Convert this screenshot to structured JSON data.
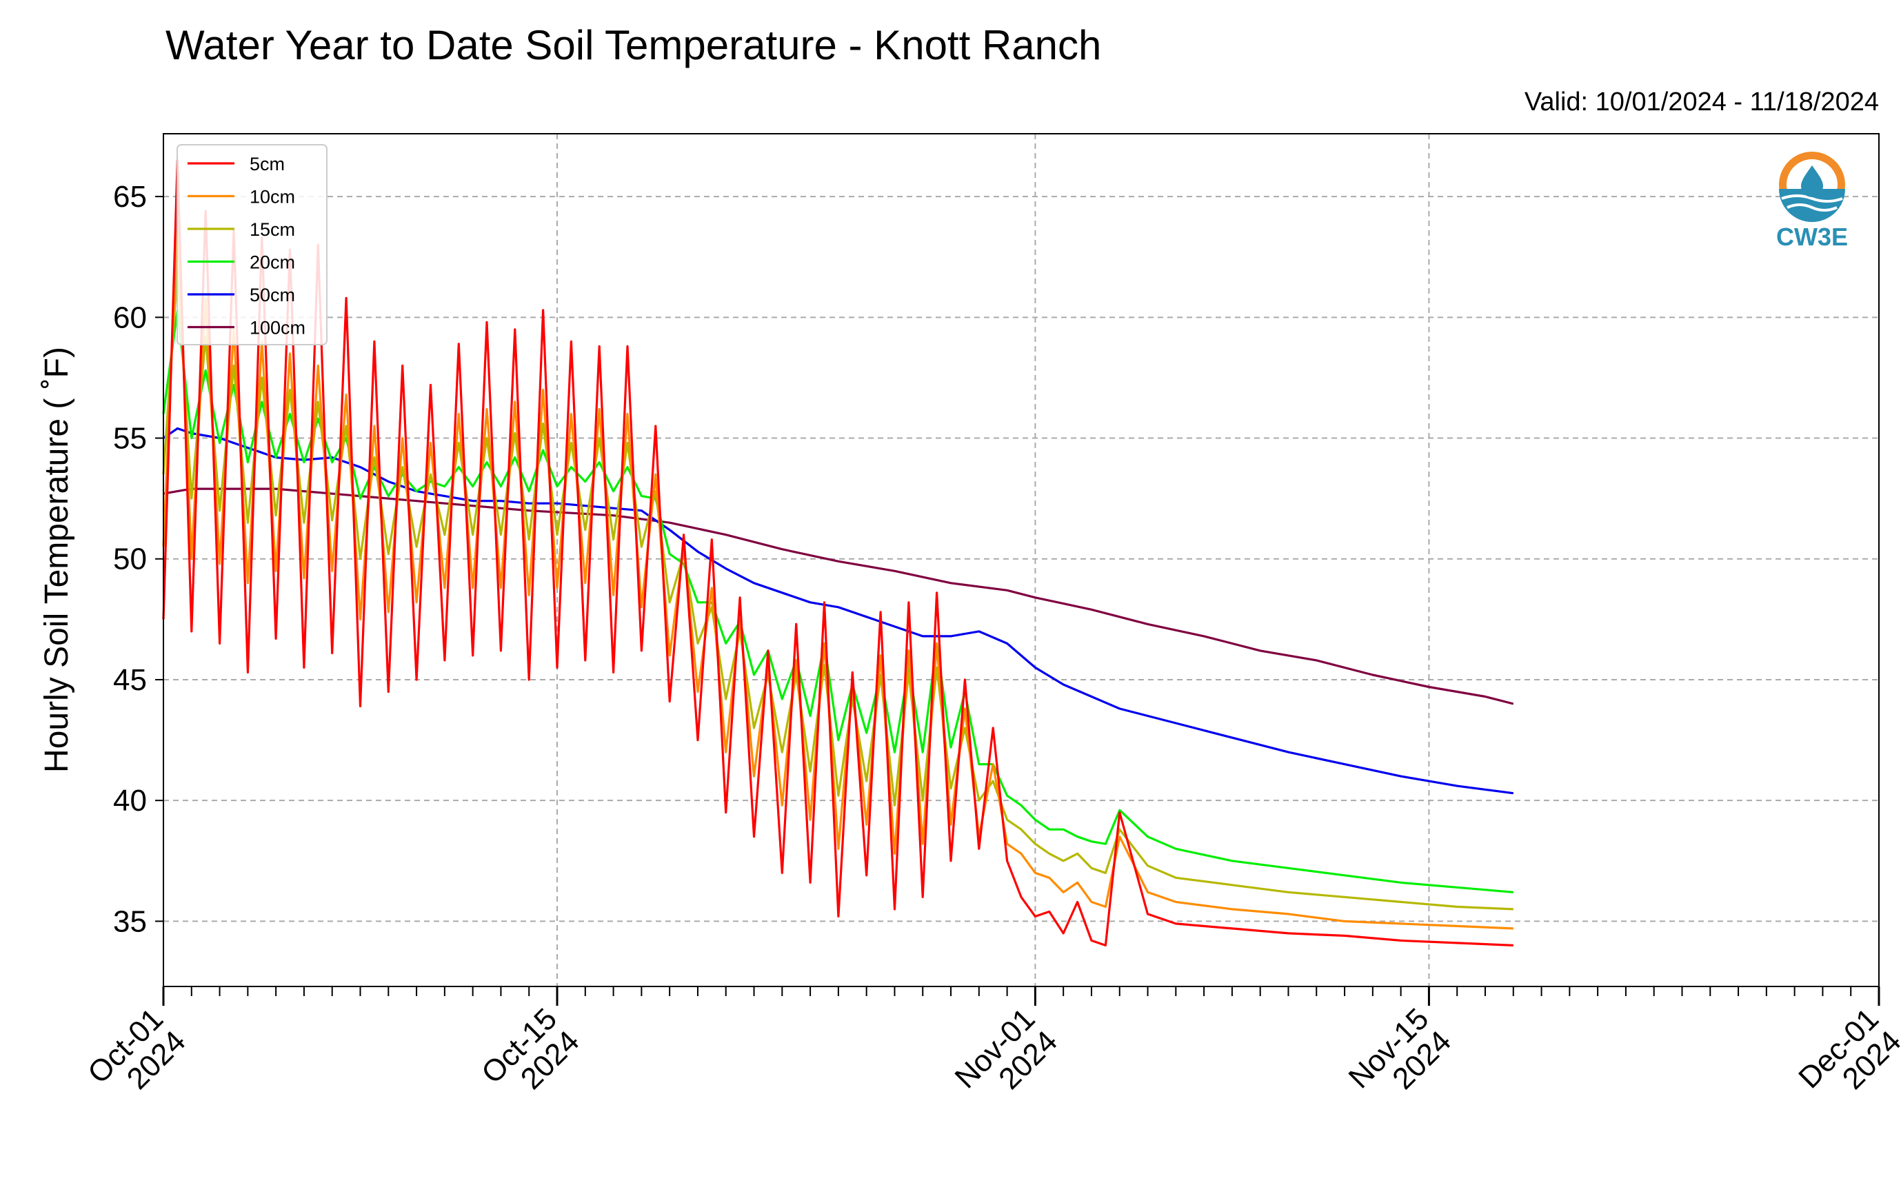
{
  "chart_data": {
    "type": "line",
    "title": "Water Year to Date Soil Temperature - Knott Ranch",
    "subtitle": "Valid: 10/01/2024 - 11/18/2024",
    "ylabel": "Hourly Soil Temperature ( ˚F)",
    "xlabel": "",
    "xlim": [
      "2024-10-01",
      "2024-12-01"
    ],
    "ylim": [
      32.3,
      67.6
    ],
    "yticks": [
      35,
      40,
      45,
      50,
      55,
      60,
      65
    ],
    "xticks": [
      {
        "date": "2024-10-01",
        "label": [
          "Oct-01",
          "2024"
        ]
      },
      {
        "date": "2024-10-15",
        "label": [
          "Oct-15",
          "2024"
        ]
      },
      {
        "date": "2024-11-01",
        "label": [
          "Nov-01",
          "2024"
        ]
      },
      {
        "date": "2024-11-15",
        "label": [
          "Nov-15",
          "2024"
        ]
      },
      {
        "date": "2024-12-01",
        "label": [
          "Dec-01",
          "2024"
        ]
      }
    ],
    "grid": true,
    "legend_position": "top-left",
    "logo": {
      "text": "CW3E",
      "color": "#2a8fb5",
      "accent": "#f28c28"
    },
    "series": [
      {
        "name": "5cm",
        "color": "#ff0000",
        "x": [
          "2024-10-01 00:00",
          "2024-10-01 12:00",
          "2024-10-02 00:00",
          "2024-10-02 12:00",
          "2024-10-03 00:00",
          "2024-10-03 12:00",
          "2024-10-04 00:00",
          "2024-10-04 12:00",
          "2024-10-05 00:00",
          "2024-10-05 12:00",
          "2024-10-06 00:00",
          "2024-10-06 12:00",
          "2024-10-07 00:00",
          "2024-10-07 12:00",
          "2024-10-08 00:00",
          "2024-10-08 12:00",
          "2024-10-09 00:00",
          "2024-10-09 12:00",
          "2024-10-10 00:00",
          "2024-10-10 12:00",
          "2024-10-11 00:00",
          "2024-10-11 12:00",
          "2024-10-12 00:00",
          "2024-10-12 12:00",
          "2024-10-13 00:00",
          "2024-10-13 12:00",
          "2024-10-14 00:00",
          "2024-10-14 12:00",
          "2024-10-15 00:00",
          "2024-10-15 12:00",
          "2024-10-16 00:00",
          "2024-10-16 12:00",
          "2024-10-17 00:00",
          "2024-10-17 12:00",
          "2024-10-18 00:00",
          "2024-10-18 12:00",
          "2024-10-19 00:00",
          "2024-10-19 12:00",
          "2024-10-20 00:00",
          "2024-10-20 12:00",
          "2024-10-21 00:00",
          "2024-10-21 12:00",
          "2024-10-22 00:00",
          "2024-10-22 12:00",
          "2024-10-23 00:00",
          "2024-10-23 12:00",
          "2024-10-24 00:00",
          "2024-10-24 12:00",
          "2024-10-25 00:00",
          "2024-10-25 12:00",
          "2024-10-26 00:00",
          "2024-10-26 12:00",
          "2024-10-27 00:00",
          "2024-10-27 12:00",
          "2024-10-28 00:00",
          "2024-10-28 12:00",
          "2024-10-29 00:00",
          "2024-10-29 12:00",
          "2024-10-30 00:00",
          "2024-10-30 12:00",
          "2024-10-31 00:00",
          "2024-10-31 12:00",
          "2024-11-01 00:00",
          "2024-11-01 12:00",
          "2024-11-02 00:00",
          "2024-11-02 12:00",
          "2024-11-03 00:00",
          "2024-11-03 12:00",
          "2024-11-04 00:00",
          "2024-11-05 00:00",
          "2024-11-06 00:00",
          "2024-11-08 00:00",
          "2024-11-10 00:00",
          "2024-11-12 00:00",
          "2024-11-14 00:00",
          "2024-11-16 00:00",
          "2024-11-18 00:00"
        ],
        "values": [
          47.5,
          66.5,
          47.0,
          64.4,
          46.5,
          63.6,
          45.3,
          63.3,
          46.7,
          62.8,
          45.5,
          63.0,
          46.1,
          60.8,
          43.9,
          59.0,
          44.5,
          58.0,
          45.0,
          57.2,
          45.8,
          58.9,
          46.0,
          59.8,
          46.2,
          59.5,
          45.0,
          60.3,
          45.5,
          59.0,
          45.8,
          58.8,
          45.3,
          58.8,
          46.2,
          55.5,
          44.1,
          51.0,
          42.5,
          50.8,
          39.5,
          48.4,
          38.5,
          46.2,
          37.0,
          47.3,
          36.6,
          48.2,
          35.2,
          45.3,
          36.9,
          47.8,
          35.5,
          48.2,
          36.0,
          48.6,
          37.5,
          45.0,
          38.0,
          43.0,
          37.5,
          36.0,
          35.2,
          35.4,
          34.5,
          35.8,
          34.2,
          34.0,
          39.5,
          35.3,
          34.9,
          34.7,
          34.5,
          34.4,
          34.2,
          34.1,
          34.0
        ]
      },
      {
        "name": "10cm",
        "color": "#ff8c00",
        "x": [
          "2024-10-01 00:00",
          "2024-10-01 12:00",
          "2024-10-02 00:00",
          "2024-10-02 12:00",
          "2024-10-03 00:00",
          "2024-10-03 12:00",
          "2024-10-04 00:00",
          "2024-10-04 12:00",
          "2024-10-05 00:00",
          "2024-10-05 12:00",
          "2024-10-06 00:00",
          "2024-10-06 12:00",
          "2024-10-07 00:00",
          "2024-10-07 12:00",
          "2024-10-08 00:00",
          "2024-10-08 12:00",
          "2024-10-09 00:00",
          "2024-10-09 12:00",
          "2024-10-10 00:00",
          "2024-10-10 12:00",
          "2024-10-11 00:00",
          "2024-10-11 12:00",
          "2024-10-12 00:00",
          "2024-10-12 12:00",
          "2024-10-13 00:00",
          "2024-10-13 12:00",
          "2024-10-14 00:00",
          "2024-10-14 12:00",
          "2024-10-15 00:00",
          "2024-10-15 12:00",
          "2024-10-16 00:00",
          "2024-10-16 12:00",
          "2024-10-17 00:00",
          "2024-10-17 12:00",
          "2024-10-18 00:00",
          "2024-10-18 12:00",
          "2024-10-19 00:00",
          "2024-10-19 12:00",
          "2024-10-20 00:00",
          "2024-10-20 12:00",
          "2024-10-21 00:00",
          "2024-10-21 12:00",
          "2024-10-22 00:00",
          "2024-10-22 12:00",
          "2024-10-23 00:00",
          "2024-10-23 12:00",
          "2024-10-24 00:00",
          "2024-10-24 12:00",
          "2024-10-25 00:00",
          "2024-10-25 12:00",
          "2024-10-26 00:00",
          "2024-10-26 12:00",
          "2024-10-27 00:00",
          "2024-10-27 12:00",
          "2024-10-28 00:00",
          "2024-10-28 12:00",
          "2024-10-29 00:00",
          "2024-10-29 12:00",
          "2024-10-30 00:00",
          "2024-10-30 12:00",
          "2024-10-31 00:00",
          "2024-10-31 12:00",
          "2024-11-01 00:00",
          "2024-11-01 12:00",
          "2024-11-02 00:00",
          "2024-11-02 12:00",
          "2024-11-03 00:00",
          "2024-11-03 12:00",
          "2024-11-04 00:00",
          "2024-11-05 00:00",
          "2024-11-06 00:00",
          "2024-11-08 00:00",
          "2024-11-10 00:00",
          "2024-11-12 00:00",
          "2024-11-14 00:00",
          "2024-11-16 00:00",
          "2024-11-18 00:00"
        ],
        "values": [
          50.5,
          64.0,
          50.0,
          60.8,
          49.8,
          59.5,
          49.0,
          59.0,
          49.5,
          58.5,
          49.2,
          58.0,
          49.5,
          56.8,
          47.5,
          55.5,
          47.8,
          55.0,
          48.2,
          54.8,
          48.8,
          56.0,
          48.8,
          56.2,
          48.8,
          56.5,
          48.5,
          57.0,
          48.8,
          56.0,
          49.0,
          56.2,
          48.5,
          56.0,
          48.0,
          53.5,
          46.0,
          50.5,
          44.5,
          48.8,
          42.0,
          47.5,
          41.0,
          45.6,
          39.8,
          45.8,
          39.2,
          46.5,
          38.0,
          44.8,
          39.0,
          46.0,
          37.8,
          46.2,
          38.2,
          46.5,
          39.0,
          43.8,
          38.5,
          41.5,
          38.2,
          37.8,
          37.0,
          36.8,
          36.2,
          36.6,
          35.8,
          35.6,
          38.5,
          36.2,
          35.8,
          35.5,
          35.3,
          35.0,
          34.9,
          34.8,
          34.7
        ]
      },
      {
        "name": "15cm",
        "color": "#b5b800",
        "x": [
          "2024-10-01 00:00",
          "2024-10-01 12:00",
          "2024-10-02 00:00",
          "2024-10-02 12:00",
          "2024-10-03 00:00",
          "2024-10-03 12:00",
          "2024-10-04 00:00",
          "2024-10-04 12:00",
          "2024-10-05 00:00",
          "2024-10-05 12:00",
          "2024-10-06 00:00",
          "2024-10-06 12:00",
          "2024-10-07 00:00",
          "2024-10-07 12:00",
          "2024-10-08 00:00",
          "2024-10-08 12:00",
          "2024-10-09 00:00",
          "2024-10-09 12:00",
          "2024-10-10 00:00",
          "2024-10-10 12:00",
          "2024-10-11 00:00",
          "2024-10-11 12:00",
          "2024-10-12 00:00",
          "2024-10-12 12:00",
          "2024-10-13 00:00",
          "2024-10-13 12:00",
          "2024-10-14 00:00",
          "2024-10-14 12:00",
          "2024-10-15 00:00",
          "2024-10-15 12:00",
          "2024-10-16 00:00",
          "2024-10-16 12:00",
          "2024-10-17 00:00",
          "2024-10-17 12:00",
          "2024-10-18 00:00",
          "2024-10-18 12:00",
          "2024-10-19 00:00",
          "2024-10-19 12:00",
          "2024-10-20 00:00",
          "2024-10-20 12:00",
          "2024-10-21 00:00",
          "2024-10-21 12:00",
          "2024-10-22 00:00",
          "2024-10-22 12:00",
          "2024-10-23 00:00",
          "2024-10-23 12:00",
          "2024-10-24 00:00",
          "2024-10-24 12:00",
          "2024-10-25 00:00",
          "2024-10-25 12:00",
          "2024-10-26 00:00",
          "2024-10-26 12:00",
          "2024-10-27 00:00",
          "2024-10-27 12:00",
          "2024-10-28 00:00",
          "2024-10-28 12:00",
          "2024-10-29 00:00",
          "2024-10-29 12:00",
          "2024-10-30 00:00",
          "2024-10-30 12:00",
          "2024-10-31 00:00",
          "2024-10-31 12:00",
          "2024-11-01 00:00",
          "2024-11-01 12:00",
          "2024-11-02 00:00",
          "2024-11-02 12:00",
          "2024-11-03 00:00",
          "2024-11-03 12:00",
          "2024-11-04 00:00",
          "2024-11-05 00:00",
          "2024-11-06 00:00",
          "2024-11-08 00:00",
          "2024-11-10 00:00",
          "2024-11-12 00:00",
          "2024-11-14 00:00",
          "2024-11-16 00:00",
          "2024-11-18 00:00"
        ],
        "values": [
          53.5,
          62.0,
          52.5,
          59.2,
          52.0,
          58.0,
          51.5,
          57.5,
          51.8,
          57.0,
          51.5,
          56.5,
          51.6,
          55.5,
          50.0,
          54.2,
          50.2,
          53.8,
          50.5,
          53.5,
          51.0,
          54.8,
          51.0,
          55.0,
          51.0,
          55.2,
          50.8,
          55.6,
          51.0,
          54.8,
          51.2,
          55.0,
          50.8,
          54.8,
          50.5,
          52.8,
          48.2,
          50.2,
          46.5,
          48.0,
          44.2,
          47.0,
          43.0,
          45.2,
          42.0,
          45.2,
          41.2,
          45.6,
          40.2,
          44.2,
          40.8,
          45.2,
          39.8,
          45.3,
          40.0,
          45.5,
          40.5,
          43.0,
          40.0,
          40.8,
          39.2,
          38.8,
          38.2,
          37.8,
          37.5,
          37.8,
          37.2,
          37.0,
          38.8,
          37.3,
          36.8,
          36.5,
          36.2,
          36.0,
          35.8,
          35.6,
          35.5
        ]
      },
      {
        "name": "20cm",
        "color": "#00ee00",
        "x": [
          "2024-10-01 00:00",
          "2024-10-01 12:00",
          "2024-10-02 00:00",
          "2024-10-02 12:00",
          "2024-10-03 00:00",
          "2024-10-03 12:00",
          "2024-10-04 00:00",
          "2024-10-04 12:00",
          "2024-10-05 00:00",
          "2024-10-05 12:00",
          "2024-10-06 00:00",
          "2024-10-06 12:00",
          "2024-10-07 00:00",
          "2024-10-07 12:00",
          "2024-10-08 00:00",
          "2024-10-08 12:00",
          "2024-10-09 00:00",
          "2024-10-09 12:00",
          "2024-10-10 00:00",
          "2024-10-10 12:00",
          "2024-10-11 00:00",
          "2024-10-11 12:00",
          "2024-10-12 00:00",
          "2024-10-12 12:00",
          "2024-10-13 00:00",
          "2024-10-13 12:00",
          "2024-10-14 00:00",
          "2024-10-14 12:00",
          "2024-10-15 00:00",
          "2024-10-15 12:00",
          "2024-10-16 00:00",
          "2024-10-16 12:00",
          "2024-10-17 00:00",
          "2024-10-17 12:00",
          "2024-10-18 00:00",
          "2024-10-18 12:00",
          "2024-10-19 00:00",
          "2024-10-19 12:00",
          "2024-10-20 00:00",
          "2024-10-20 12:00",
          "2024-10-21 00:00",
          "2024-10-21 12:00",
          "2024-10-22 00:00",
          "2024-10-22 12:00",
          "2024-10-23 00:00",
          "2024-10-23 12:00",
          "2024-10-24 00:00",
          "2024-10-24 12:00",
          "2024-10-25 00:00",
          "2024-10-25 12:00",
          "2024-10-26 00:00",
          "2024-10-26 12:00",
          "2024-10-27 00:00",
          "2024-10-27 12:00",
          "2024-10-28 00:00",
          "2024-10-28 12:00",
          "2024-10-29 00:00",
          "2024-10-29 12:00",
          "2024-10-30 00:00",
          "2024-10-30 12:00",
          "2024-10-31 00:00",
          "2024-10-31 12:00",
          "2024-11-01 00:00",
          "2024-11-01 12:00",
          "2024-11-02 00:00",
          "2024-11-02 12:00",
          "2024-11-03 00:00",
          "2024-11-03 12:00",
          "2024-11-04 00:00",
          "2024-11-05 00:00",
          "2024-11-06 00:00",
          "2024-11-08 00:00",
          "2024-11-10 00:00",
          "2024-11-12 00:00",
          "2024-11-14 00:00",
          "2024-11-16 00:00",
          "2024-11-18 00:00"
        ],
        "values": [
          56.0,
          60.3,
          55.0,
          57.8,
          54.8,
          57.2,
          54.0,
          56.5,
          54.2,
          56.0,
          54.0,
          55.8,
          54.0,
          55.0,
          52.5,
          53.8,
          52.6,
          53.5,
          52.8,
          53.2,
          53.0,
          53.8,
          53.0,
          54.0,
          53.0,
          54.2,
          52.8,
          54.5,
          53.0,
          53.8,
          53.2,
          54.0,
          52.8,
          53.8,
          52.6,
          52.5,
          50.2,
          49.8,
          48.2,
          48.2,
          46.5,
          47.4,
          45.2,
          46.2,
          44.2,
          45.8,
          43.5,
          46.5,
          42.5,
          44.8,
          42.8,
          45.2,
          42.0,
          45.5,
          42.0,
          46.5,
          42.2,
          44.5,
          41.5,
          41.5,
          40.2,
          39.8,
          39.2,
          38.8,
          38.8,
          38.5,
          38.3,
          38.2,
          39.6,
          38.5,
          38.0,
          37.5,
          37.2,
          36.9,
          36.6,
          36.4,
          36.2
        ]
      },
      {
        "name": "50cm",
        "color": "#0000ee",
        "x": [
          "2024-10-01 00:00",
          "2024-10-01 12:00",
          "2024-10-02 00:00",
          "2024-10-03 00:00",
          "2024-10-04 00:00",
          "2024-10-05 00:00",
          "2024-10-06 00:00",
          "2024-10-07 00:00",
          "2024-10-08 00:00",
          "2024-10-09 00:00",
          "2024-10-10 00:00",
          "2024-10-11 00:00",
          "2024-10-12 00:00",
          "2024-10-13 00:00",
          "2024-10-14 00:00",
          "2024-10-15 00:00",
          "2024-10-16 00:00",
          "2024-10-17 00:00",
          "2024-10-18 00:00",
          "2024-10-19 00:00",
          "2024-10-20 00:00",
          "2024-10-21 00:00",
          "2024-10-22 00:00",
          "2024-10-23 00:00",
          "2024-10-24 00:00",
          "2024-10-25 00:00",
          "2024-10-26 00:00",
          "2024-10-27 00:00",
          "2024-10-28 00:00",
          "2024-10-29 00:00",
          "2024-10-30 00:00",
          "2024-10-31 00:00",
          "2024-11-01 00:00",
          "2024-11-02 00:00",
          "2024-11-03 00:00",
          "2024-11-04 00:00",
          "2024-11-06 00:00",
          "2024-11-08 00:00",
          "2024-11-10 00:00",
          "2024-11-12 00:00",
          "2024-11-14 00:00",
          "2024-11-16 00:00",
          "2024-11-18 00:00"
        ],
        "values": [
          55.0,
          55.4,
          55.2,
          55.0,
          54.6,
          54.2,
          54.1,
          54.2,
          53.8,
          53.2,
          52.8,
          52.6,
          52.4,
          52.4,
          52.3,
          52.3,
          52.2,
          52.1,
          52.0,
          51.2,
          50.3,
          49.6,
          49.0,
          48.6,
          48.2,
          48.0,
          47.6,
          47.2,
          46.8,
          46.8,
          47.0,
          46.5,
          45.5,
          44.8,
          44.3,
          43.8,
          43.2,
          42.6,
          42.0,
          41.5,
          41.0,
          40.6,
          40.3
        ]
      },
      {
        "name": "100cm",
        "color": "#800040",
        "x": [
          "2024-10-01 00:00",
          "2024-10-02 00:00",
          "2024-10-05 00:00",
          "2024-10-08 00:00",
          "2024-10-11 00:00",
          "2024-10-14 00:00",
          "2024-10-17 00:00",
          "2024-10-19 00:00",
          "2024-10-21 00:00",
          "2024-10-23 00:00",
          "2024-10-25 00:00",
          "2024-10-27 00:00",
          "2024-10-29 00:00",
          "2024-10-31 00:00",
          "2024-11-01 00:00",
          "2024-11-03 00:00",
          "2024-11-05 00:00",
          "2024-11-07 00:00",
          "2024-11-09 00:00",
          "2024-11-11 00:00",
          "2024-11-13 00:00",
          "2024-11-15 00:00",
          "2024-11-17 00:00",
          "2024-11-18 00:00"
        ],
        "values": [
          52.7,
          52.9,
          52.9,
          52.6,
          52.3,
          52.0,
          51.8,
          51.5,
          51.0,
          50.4,
          49.9,
          49.5,
          49.0,
          48.7,
          48.4,
          47.9,
          47.3,
          46.8,
          46.2,
          45.8,
          45.2,
          44.7,
          44.3,
          44.0
        ]
      }
    ]
  }
}
